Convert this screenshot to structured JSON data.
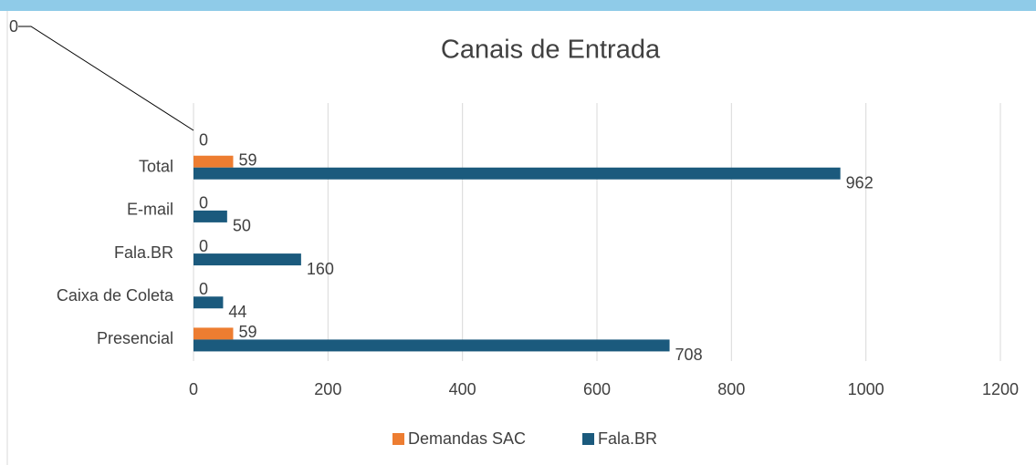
{
  "chart_data": {
    "type": "barh",
    "title": "Canais de Entrada",
    "categories": [
      "Presencial",
      "Caixa de Coleta",
      "Fala.BR",
      "E-mail",
      "Total",
      null
    ],
    "series": [
      {
        "name": "Demandas SAC",
        "color": "#ed7d31",
        "values": [
          59,
          0,
          0,
          0,
          59,
          0
        ]
      },
      {
        "name": "Fala.BR",
        "color": "#1b5a7d",
        "values": [
          708,
          44,
          160,
          50,
          962,
          0
        ]
      }
    ],
    "xlim": [
      0,
      1200
    ],
    "xticks": [
      0,
      200,
      400,
      600,
      800,
      1000,
      1200
    ],
    "grid": true,
    "legend": "bottom"
  }
}
